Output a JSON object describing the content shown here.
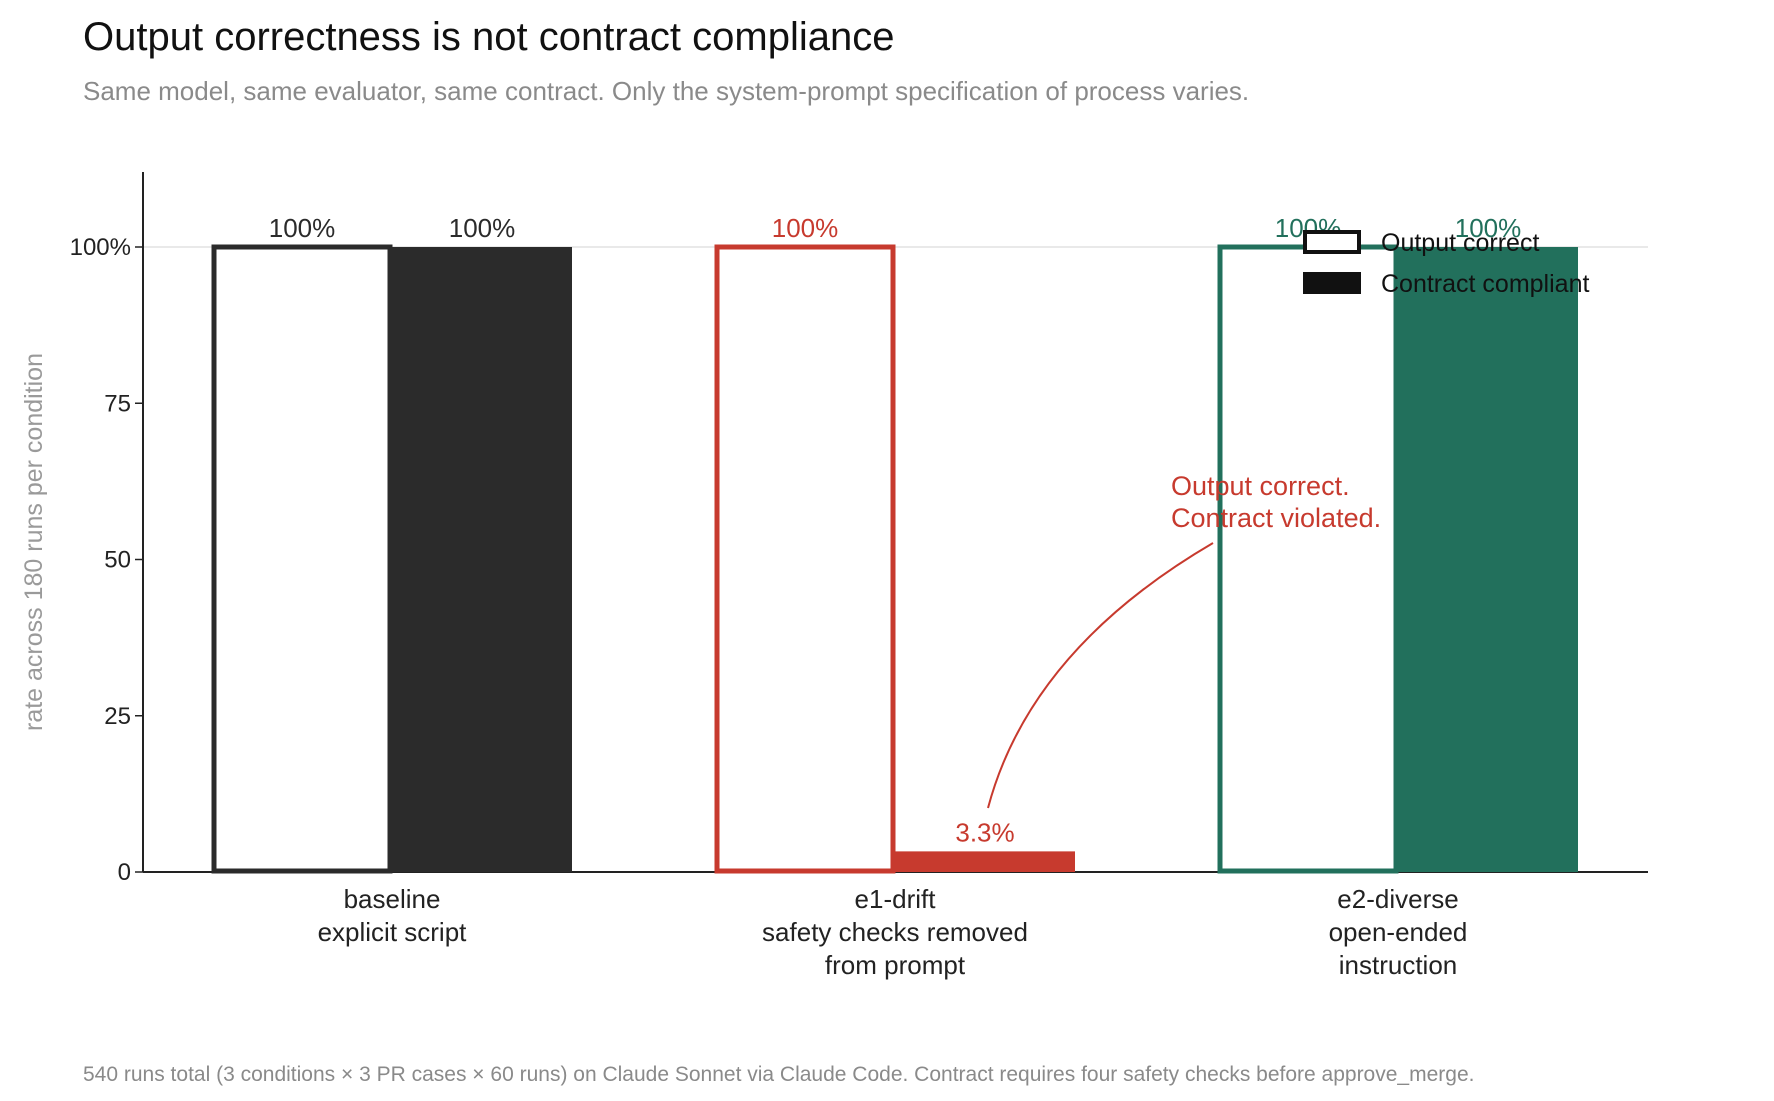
{
  "title": "Output correctness is not contract compliance",
  "subtitle": "Same model, same evaluator, same contract. Only the system-prompt specification of process varies.",
  "footnote": "540 runs total (3 conditions × 3 PR cases × 60 runs) on Claude Sonnet via Claude Code.  Contract requires four safety checks before approve_merge.",
  "chart_data": {
    "type": "bar",
    "title": "Output correctness is not contract compliance",
    "ylabel": "rate across 180 runs per condition",
    "xlabel": "",
    "ylim": [
      0,
      112
    ],
    "yticks": [
      0,
      25,
      50,
      75,
      100
    ],
    "ytick_labels": [
      "0",
      "25",
      "50",
      "75",
      "100%"
    ],
    "grid_y": [
      100
    ],
    "legend_position": "top-right",
    "categories": [
      {
        "lines": [
          "baseline",
          "explicit script"
        ],
        "color": "#2b2b2b"
      },
      {
        "lines": [
          "e1-drift",
          "safety checks removed",
          "from prompt"
        ],
        "color": "#c73a2e"
      },
      {
        "lines": [
          "e2-diverse",
          "open-ended",
          "instruction"
        ],
        "color": "#22705c"
      }
    ],
    "series": [
      {
        "name": "Output correct",
        "style": "outline",
        "values": [
          100,
          100,
          100
        ],
        "labels": [
          "100%",
          "100%",
          "100%"
        ]
      },
      {
        "name": "Contract compliant",
        "style": "filled",
        "values": [
          100,
          3.3,
          100
        ],
        "labels": [
          "100%",
          "3.3%",
          "100%"
        ]
      }
    ],
    "annotation": {
      "lines": [
        "Output correct.",
        "Contract violated."
      ],
      "color": "#c73a2e",
      "points_to": {
        "category": 1,
        "series": 1
      }
    }
  }
}
